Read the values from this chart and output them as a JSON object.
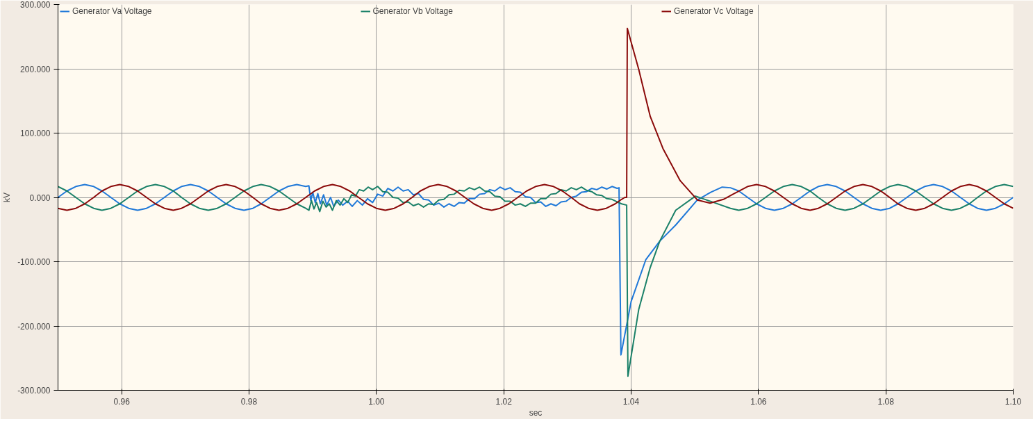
{
  "chart_data": {
    "type": "line",
    "xlabel": "sec",
    "ylabel": "kV",
    "xlim": [
      0.95,
      1.1
    ],
    "ylim": [
      -300,
      300
    ],
    "xticks": [
      0.96,
      0.98,
      {
        "value": 1.0,
        "label": "1.00"
      },
      1.02,
      1.04,
      1.06,
      1.08,
      {
        "value": 1.1,
        "label": "1.10"
      }
    ],
    "yticks": [
      {
        "value": -300,
        "label": "-300.000"
      },
      {
        "value": -200,
        "label": "-200.000"
      },
      {
        "value": -100,
        "label": "-100.000"
      },
      {
        "value": 0,
        "label": "0.000"
      },
      {
        "value": 100,
        "label": "100.000"
      },
      {
        "value": 200,
        "label": "200.000"
      },
      {
        "value": 300,
        "label": "300.000"
      }
    ],
    "grid": true,
    "legend": "top",
    "marker": "none",
    "line_style": "solid",
    "series": [
      {
        "name": "Generator Va Voltage",
        "color": "#1f78d8",
        "x": [
          0.95,
          0.9514,
          0.9528,
          0.9542,
          0.9556,
          0.9569,
          0.9583,
          0.9597,
          0.9611,
          0.9625,
          0.9639,
          0.9653,
          0.9667,
          0.9681,
          0.9694,
          0.9708,
          0.9722,
          0.9736,
          0.975,
          0.9764,
          0.9778,
          0.9792,
          0.9806,
          0.9819,
          0.9833,
          0.9847,
          0.9861,
          0.9875,
          0.9889,
          0.9894,
          0.9897,
          0.99,
          0.9904,
          0.9908,
          0.9912,
          0.9917,
          0.9922,
          0.9928,
          0.9933,
          0.994,
          0.9947,
          0.9955,
          0.9962,
          0.997,
          0.9978,
          0.9986,
          0.9994,
          1.0002,
          1.001,
          1.0018,
          1.0026,
          1.0034,
          1.0042,
          1.005,
          1.0058,
          1.0066,
          1.0074,
          1.0082,
          1.009,
          1.0098,
          1.0106,
          1.0114,
          1.0122,
          1.013,
          1.0138,
          1.0146,
          1.0154,
          1.0162,
          1.017,
          1.0178,
          1.0186,
          1.0194,
          1.0202,
          1.021,
          1.0218,
          1.0226,
          1.0234,
          1.0242,
          1.025,
          1.0258,
          1.0266,
          1.0274,
          1.0282,
          1.029,
          1.0298,
          1.0306,
          1.0314,
          1.0322,
          1.033,
          1.0338,
          1.0346,
          1.0354,
          1.0362,
          1.037,
          1.0378,
          1.0381,
          1.0384,
          1.04,
          1.0423,
          1.0445,
          1.047,
          1.0504,
          1.0525,
          1.0543,
          1.0556,
          1.0569,
          1.0583,
          1.0597,
          1.0611,
          1.0625,
          1.0639,
          1.0653,
          1.0667,
          1.0681,
          1.0694,
          1.0708,
          1.0722,
          1.0736,
          1.075,
          1.0764,
          1.0778,
          1.0792,
          1.0806,
          1.0819,
          1.0833,
          1.0847,
          1.0861,
          1.0875,
          1.0889,
          1.0903,
          1.0917,
          1.0931,
          1.0944,
          1.0958,
          1.0972,
          1.0986,
          1.1
        ],
        "values": [
          0,
          10,
          17,
          20,
          17,
          10,
          0,
          -10,
          -17,
          -20,
          -17,
          -10,
          0,
          10,
          17,
          20,
          17,
          10,
          0,
          -10,
          -17,
          -20,
          -17,
          -10,
          0,
          10,
          17,
          20,
          17,
          18,
          -5,
          8,
          -8,
          6,
          -10,
          4,
          -12,
          0,
          -14,
          -4,
          -12,
          -6,
          -14,
          -5,
          -12,
          -2,
          -8,
          5,
          2,
          14,
          10,
          16,
          10,
          12,
          4,
          6,
          -3,
          -4,
          -12,
          -9,
          -15,
          -10,
          -14,
          -8,
          -9,
          -2,
          -2,
          5,
          6,
          12,
          10,
          16,
          12,
          15,
          9,
          8,
          1,
          0,
          -8,
          -7,
          -14,
          -10,
          -13,
          -7,
          -6,
          0,
          2,
          8,
          9,
          14,
          12,
          16,
          13,
          17,
          14,
          15,
          -245,
          -162,
          -97,
          -68,
          -43,
          -4,
          8,
          16,
          15,
          10,
          0,
          -10,
          -17,
          -20,
          -17,
          -10,
          0,
          10,
          17,
          20,
          17,
          10,
          0,
          -10,
          -17,
          -20,
          -17,
          -10,
          0,
          10,
          17,
          20,
          17,
          10,
          0,
          -10,
          -17,
          -20,
          -17,
          -10,
          0
        ]
      },
      {
        "name": "Generator Vb Voltage",
        "color": "#1a8068",
        "x": [
          0.95,
          0.9514,
          0.9528,
          0.9542,
          0.9556,
          0.9569,
          0.9583,
          0.9597,
          0.9611,
          0.9625,
          0.9639,
          0.9653,
          0.9667,
          0.9681,
          0.9694,
          0.9708,
          0.9722,
          0.9736,
          0.975,
          0.9764,
          0.9778,
          0.9792,
          0.9806,
          0.9819,
          0.9833,
          0.9847,
          0.9861,
          0.9875,
          0.9889,
          0.9894,
          0.9898,
          0.9902,
          0.9906,
          0.9911,
          0.9916,
          0.9921,
          0.9926,
          0.9931,
          0.9937,
          0.9943,
          0.9949,
          0.9955,
          0.9961,
          0.9967,
          0.9973,
          0.998,
          0.9987,
          0.9994,
          1.0002,
          1.001,
          1.0018,
          1.0026,
          1.0034,
          1.0042,
          1.005,
          1.0058,
          1.0066,
          1.0074,
          1.0082,
          1.009,
          1.0098,
          1.0106,
          1.0114,
          1.0122,
          1.013,
          1.0138,
          1.0146,
          1.0154,
          1.0162,
          1.017,
          1.0178,
          1.0186,
          1.0194,
          1.0202,
          1.021,
          1.0218,
          1.0226,
          1.0234,
          1.0242,
          1.025,
          1.0258,
          1.0266,
          1.0274,
          1.0282,
          1.029,
          1.0298,
          1.0306,
          1.0314,
          1.0322,
          1.033,
          1.0338,
          1.0346,
          1.0354,
          1.0362,
          1.037,
          1.0378,
          1.0385,
          1.0393,
          1.0395,
          1.0412,
          1.043,
          1.0445,
          1.047,
          1.0501,
          1.053,
          1.0556,
          1.0569,
          1.0583,
          1.0597,
          1.0611,
          1.0625,
          1.0639,
          1.0653,
          1.0667,
          1.0681,
          1.0694,
          1.0708,
          1.0722,
          1.0736,
          1.075,
          1.0764,
          1.0778,
          1.0792,
          1.0806,
          1.0819,
          1.0833,
          1.0847,
          1.0861,
          1.0875,
          1.0889,
          1.0903,
          1.0917,
          1.0931,
          1.0944,
          1.0958,
          1.0972,
          1.0986,
          1.1
        ],
        "values": [
          17,
          10,
          0,
          -10,
          -17,
          -20,
          -17,
          -10,
          0,
          10,
          17,
          20,
          17,
          10,
          0,
          -10,
          -17,
          -20,
          -17,
          -10,
          0,
          10,
          17,
          20,
          17,
          10,
          0,
          -10,
          -17,
          -20,
          -5,
          -18,
          -8,
          -22,
          -6,
          -15,
          -10,
          -20,
          -5,
          -12,
          -2,
          -8,
          4,
          2,
          12,
          10,
          16,
          12,
          17,
          9,
          8,
          0,
          -1,
          -8,
          -7,
          -13,
          -10,
          -15,
          -10,
          -11,
          -4,
          -3,
          4,
          5,
          11,
          10,
          15,
          12,
          16,
          10,
          9,
          2,
          1,
          -6,
          -6,
          -12,
          -10,
          -14,
          -9,
          -9,
          -2,
          -2,
          5,
          6,
          12,
          10,
          15,
          12,
          16,
          11,
          9,
          4,
          3,
          -2,
          -3,
          -7,
          -10,
          -12,
          -278,
          -174,
          -109,
          -68,
          -20,
          2,
          -8,
          -17,
          -20,
          -17,
          -10,
          0,
          10,
          17,
          20,
          17,
          10,
          0,
          -10,
          -17,
          -20,
          -17,
          -10,
          0,
          10,
          17,
          20,
          17,
          10,
          0,
          -10,
          -17,
          -20,
          -17,
          -10,
          0,
          10,
          17,
          20,
          17
        ]
      },
      {
        "name": "Generator Vc Voltage",
        "color": "#8b0a0a",
        "x": [
          0.95,
          0.9514,
          0.9528,
          0.9542,
          0.9556,
          0.9569,
          0.9583,
          0.9597,
          0.9611,
          0.9625,
          0.9639,
          0.9653,
          0.9667,
          0.9681,
          0.9694,
          0.9708,
          0.9722,
          0.9736,
          0.975,
          0.9764,
          0.9778,
          0.9792,
          0.9806,
          0.9819,
          0.9833,
          0.9847,
          0.9861,
          0.9875,
          0.9889,
          0.9903,
          0.9917,
          0.9931,
          0.9944,
          0.9958,
          0.9972,
          0.9986,
          1.0,
          1.0014,
          1.0028,
          1.0042,
          1.0056,
          1.0069,
          1.0083,
          1.0097,
          1.0111,
          1.0125,
          1.0139,
          1.0153,
          1.0167,
          1.0181,
          1.0194,
          1.0208,
          1.0222,
          1.0236,
          1.025,
          1.0264,
          1.0278,
          1.0292,
          1.0306,
          1.0319,
          1.0333,
          1.0347,
          1.0361,
          1.0375,
          1.0385,
          1.039,
          1.0393,
          1.0394,
          1.0412,
          1.043,
          1.045,
          1.0477,
          1.0504,
          1.0524,
          1.0545,
          1.056,
          1.0583,
          1.0597,
          1.0611,
          1.0625,
          1.0639,
          1.0653,
          1.0667,
          1.0681,
          1.0694,
          1.0708,
          1.0722,
          1.0736,
          1.075,
          1.0764,
          1.0778,
          1.0792,
          1.0806,
          1.0819,
          1.0833,
          1.0847,
          1.0861,
          1.0875,
          1.0889,
          1.0903,
          1.0917,
          1.0931,
          1.0944,
          1.0958,
          1.0972,
          1.0986,
          1.1
        ],
        "values": [
          -17,
          -20,
          -17,
          -10,
          0,
          10,
          17,
          20,
          17,
          10,
          0,
          -10,
          -17,
          -20,
          -17,
          -10,
          0,
          10,
          17,
          20,
          17,
          10,
          0,
          -10,
          -17,
          -20,
          -17,
          -10,
          0,
          10,
          17,
          20,
          17,
          10,
          0,
          -10,
          -17,
          -20,
          -17,
          -10,
          0,
          10,
          17,
          20,
          17,
          10,
          0,
          -10,
          -17,
          -20,
          -17,
          -10,
          0,
          10,
          17,
          20,
          17,
          10,
          0,
          -10,
          -17,
          -20,
          -17,
          -10,
          -3,
          0,
          0,
          263,
          199,
          126,
          76,
          26,
          -4,
          -9,
          -3,
          5,
          17,
          20,
          17,
          10,
          0,
          -10,
          -17,
          -20,
          -17,
          -10,
          0,
          10,
          17,
          20,
          17,
          10,
          0,
          -10,
          -17,
          -20,
          -17,
          -10,
          0,
          10,
          17,
          20,
          17,
          10,
          0,
          -10,
          -17
        ]
      }
    ]
  }
}
